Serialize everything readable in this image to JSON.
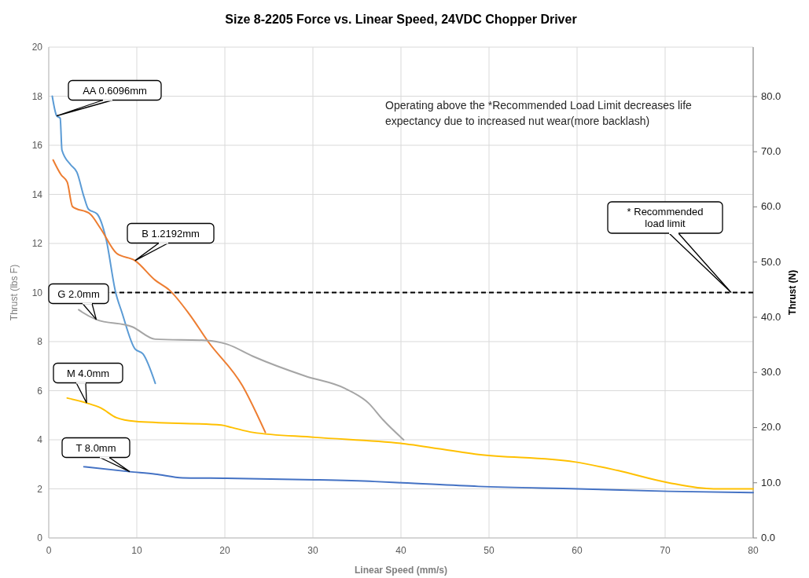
{
  "chart_data": {
    "type": "line",
    "title": "Size 8-2205 Force vs. Linear Speed, 24VDC Chopper Driver",
    "xlabel": "Linear Speed (mm/s)",
    "ylabel": "Thrust (lbs F)",
    "y2label": "Thrust (N)",
    "xlim": [
      0,
      80
    ],
    "xticks": [
      0,
      10,
      20,
      30,
      40,
      50,
      60,
      70,
      80
    ],
    "ylim": [
      0,
      20
    ],
    "yticks": [
      0,
      2,
      4,
      6,
      8,
      10,
      12,
      14,
      16,
      18,
      20
    ],
    "y2lim": [
      0,
      88.96
    ],
    "y2ticks": [
      {
        "value": 0,
        "label": "0.0"
      },
      {
        "value": 10,
        "label": "10.0"
      },
      {
        "value": 20,
        "label": "20.0"
      },
      {
        "value": 30,
        "label": "30.0"
      },
      {
        "value": 40,
        "label": "40.0"
      },
      {
        "value": 50,
        "label": "50.0"
      },
      {
        "value": 60,
        "label": "60.0"
      },
      {
        "value": 70,
        "label": "70.0"
      },
      {
        "value": 80,
        "label": "80.0"
      }
    ],
    "grid": true,
    "marker": "none",
    "line_style": "solid",
    "series": [
      {
        "name": "AA 0.6096mm",
        "color": "#5b9bd5",
        "x": [
          0.4,
          0.9,
          1.3,
          1.5,
          2.5,
          3.2,
          4.0,
          4.5,
          5.5,
          6.5,
          7.6,
          8.3,
          9.8,
          10.7,
          12.1
        ],
        "values": [
          18.0,
          17.2,
          17.1,
          15.8,
          15.2,
          14.9,
          13.9,
          13.4,
          13.2,
          12.2,
          10.0,
          9.2,
          7.7,
          7.5,
          6.3
        ]
      },
      {
        "name": "B 1.2192mm",
        "color": "#ed7d31",
        "x": [
          0.5,
          1.4,
          2.1,
          2.7,
          4.7,
          5.9,
          7.7,
          9.8,
          12.1,
          13.7,
          16.0,
          18.1,
          22.0,
          24.6
        ],
        "values": [
          15.4,
          14.8,
          14.5,
          13.5,
          13.2,
          12.6,
          11.6,
          11.3,
          10.5,
          10.1,
          9.1,
          8.0,
          6.2,
          4.3
        ]
      },
      {
        "name": "G 2.0mm",
        "color": "#a5a5a5",
        "x": [
          3.4,
          3.8,
          5.4,
          9.5,
          12.1,
          17.9,
          20.2,
          23.2,
          29.1,
          33.6,
          36.3,
          38.0,
          40.3
        ],
        "values": [
          9.3,
          9.2,
          8.9,
          8.6,
          8.1,
          8.05,
          7.9,
          7.4,
          6.6,
          6.1,
          5.5,
          4.8,
          4.0
        ]
      },
      {
        "name": "M 4.0mm",
        "color": "#ffc000",
        "x": [
          2.1,
          4.3,
          5.9,
          7.7,
          9.8,
          19.6,
          20.8,
          23.2,
          30.2,
          40.1,
          48.8,
          59.7,
          64.6,
          70.4,
          75.5,
          80.0
        ],
        "values": [
          5.7,
          5.5,
          5.3,
          4.9,
          4.75,
          4.6,
          4.5,
          4.3,
          4.1,
          3.85,
          3.4,
          3.1,
          2.75,
          2.25,
          2.0,
          2.0
        ]
      },
      {
        "name": "T 8.0mm",
        "color": "#4472c4",
        "x": [
          4.0,
          9.2,
          12.1,
          15.2,
          20.2,
          30.2,
          37.0,
          40.1,
          48.8,
          60.1,
          70.4,
          80.0
        ],
        "values": [
          2.9,
          2.7,
          2.6,
          2.45,
          2.43,
          2.37,
          2.3,
          2.25,
          2.1,
          2.0,
          1.9,
          1.85
        ]
      }
    ],
    "ref_lines": [
      {
        "axis": "y",
        "value": 10,
        "color": "#000000",
        "line_style": "dashed"
      }
    ],
    "annotations": [
      "Operating above the *Recommended Load Limit decreases life expectancy due to increased nut wear(more backlash)",
      "* Recommended load limit"
    ]
  }
}
